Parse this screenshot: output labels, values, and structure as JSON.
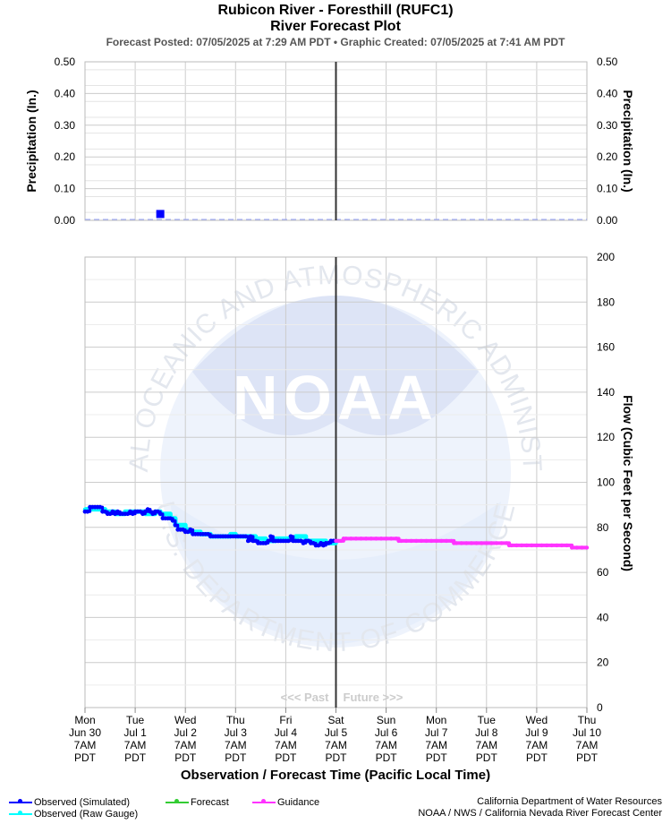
{
  "header": {
    "title": "Rubicon River - Foresthill (RUFC1)",
    "subtitle": "River Forecast Plot",
    "posted_line": "Forecast Posted: 07/05/2025 at 7:29 AM PDT  •  Graphic Created: 07/05/2025 at 7:41 AM PDT"
  },
  "watermark": {
    "logo_text": "NOAA",
    "ring_top": "NATIONAL OCEANIC AND ATMOSPHERIC ADMINISTRATION",
    "ring_bottom": "U.S. DEPARTMENT OF COMMERCE"
  },
  "colors": {
    "observed_simulated": "#0000ff",
    "observed_raw": "#00ffff",
    "forecast": "#33cc33",
    "guidance": "#ff33ff",
    "now_line": "#333333",
    "grid": "#cccccc",
    "watermark": "#e8efff"
  },
  "chart_data": [
    {
      "type": "scatter",
      "panel": "precipitation",
      "ylabel_left": "Precipitation (In.)",
      "ylabel_right": "Precipitation (In.)",
      "ylim": [
        0,
        0.5
      ],
      "yticks": [
        0.0,
        0.1,
        0.2,
        0.3,
        0.4,
        0.5
      ],
      "ytick_labels": [
        "0.00",
        "0.10",
        "0.20",
        "0.30",
        "0.40",
        "0.50"
      ],
      "xlim_days": [
        0,
        10
      ],
      "series": [
        {
          "name": "Observed Precipitation",
          "points": [
            {
              "x": 1.5,
              "y": 0.02
            }
          ]
        }
      ],
      "grid": true
    },
    {
      "type": "line",
      "panel": "flow",
      "ylabel": "Flow (Cubic Feet per Second)",
      "xlabel": "Observation / Forecast Time (Pacific Local Time)",
      "ylim": [
        0,
        200
      ],
      "yticks": [
        0,
        20,
        40,
        60,
        80,
        100,
        120,
        140,
        160,
        180,
        200
      ],
      "xlim_days": [
        0,
        10
      ],
      "x_tick_labels": [
        [
          "Mon",
          "Jun 30",
          "7AM",
          "PDT"
        ],
        [
          "Tue",
          "Jul 1",
          "7AM",
          "PDT"
        ],
        [
          "Wed",
          "Jul 2",
          "7AM",
          "PDT"
        ],
        [
          "Thu",
          "Jul 3",
          "7AM",
          "PDT"
        ],
        [
          "Fri",
          "Jul 4",
          "7AM",
          "PDT"
        ],
        [
          "Sat",
          "Jul 5",
          "7AM",
          "PDT"
        ],
        [
          "Sun",
          "Jul 6",
          "7AM",
          "PDT"
        ],
        [
          "Mon",
          "Jul 7",
          "7AM",
          "PDT"
        ],
        [
          "Tue",
          "Jul 8",
          "7AM",
          "PDT"
        ],
        [
          "Wed",
          "Jul 9",
          "7AM",
          "PDT"
        ],
        [
          "Thu",
          "Jul 10",
          "7AM",
          "PDT"
        ]
      ],
      "now_day": 5,
      "past_label": "<<< Past",
      "future_label": "Future >>>",
      "series": [
        {
          "name": "Observed (Raw Gauge)",
          "x": [
            0,
            0.1,
            0.2,
            0.4,
            0.6,
            0.8,
            1.0,
            1.2,
            1.4,
            1.5,
            1.6,
            1.7,
            1.8,
            2.0,
            2.1,
            2.3,
            2.5,
            2.7,
            2.9,
            3.0,
            3.2,
            3.4,
            3.6,
            3.8,
            4.0,
            4.2,
            4.4,
            4.6,
            4.8,
            5.0
          ],
          "y": [
            88,
            88,
            88,
            87,
            86,
            87,
            87,
            86,
            87,
            86,
            86,
            84,
            81,
            79,
            78,
            77,
            76,
            76,
            77,
            76,
            76,
            75,
            74,
            75,
            75,
            76,
            74,
            74,
            73,
            73
          ]
        },
        {
          "name": "Observed (Simulated)",
          "x": [
            0,
            0.05,
            0.1,
            0.15,
            0.2,
            0.25,
            0.3,
            0.35,
            0.4,
            0.45,
            0.5,
            0.55,
            0.6,
            0.65,
            0.7,
            0.75,
            0.8,
            0.85,
            0.9,
            0.95,
            1.0,
            1.05,
            1.1,
            1.15,
            1.2,
            1.25,
            1.3,
            1.35,
            1.4,
            1.45,
            1.5,
            1.55,
            1.6,
            1.65,
            1.7,
            1.75,
            1.8,
            1.85,
            1.9,
            1.95,
            2.0,
            2.05,
            2.1,
            2.15,
            2.2,
            2.25,
            2.3,
            2.35,
            2.4,
            2.45,
            2.5,
            2.55,
            2.6,
            2.65,
            2.7,
            2.75,
            2.8,
            2.85,
            2.9,
            2.95,
            3.0,
            3.05,
            3.1,
            3.15,
            3.2,
            3.25,
            3.3,
            3.35,
            3.4,
            3.45,
            3.5,
            3.55,
            3.6,
            3.65,
            3.7,
            3.75,
            3.8,
            3.85,
            3.9,
            3.95,
            4.0,
            4.05,
            4.1,
            4.15,
            4.2,
            4.25,
            4.3,
            4.35,
            4.4,
            4.45,
            4.5,
            4.55,
            4.6,
            4.65,
            4.7,
            4.75,
            4.8,
            4.85,
            4.9,
            4.95,
            5.0
          ],
          "y": [
            87,
            87,
            89,
            89,
            89,
            89,
            89,
            87,
            87,
            86,
            86,
            87,
            86,
            87,
            86,
            86,
            86,
            86,
            87,
            86,
            87,
            87,
            87,
            86,
            87,
            88,
            87,
            86,
            87,
            87,
            86,
            84,
            84,
            84,
            84,
            83,
            81,
            79,
            79,
            79,
            78,
            78,
            79,
            77,
            77,
            77,
            77,
            77,
            77,
            77,
            76,
            76,
            76,
            76,
            76,
            76,
            76,
            76,
            76,
            76,
            76,
            76,
            76,
            76,
            76,
            74,
            76,
            74,
            74,
            73,
            73,
            73,
            73,
            74,
            76,
            74,
            74,
            74,
            74,
            74,
            74,
            74,
            76,
            74,
            74,
            74,
            74,
            73,
            74,
            74,
            73,
            73,
            72,
            72,
            73,
            72,
            73,
            73,
            74,
            74,
            74
          ]
        },
        {
          "name": "Guidance",
          "x": [
            5.0,
            5.05,
            5.1,
            5.15,
            5.2,
            5.3,
            5.4,
            5.5,
            5.6,
            5.7,
            5.8,
            5.9,
            6.0,
            6.1,
            6.2,
            6.25,
            6.3,
            6.4,
            6.5,
            6.6,
            6.7,
            6.8,
            6.9,
            7.0,
            7.1,
            7.2,
            7.3,
            7.35,
            7.4,
            7.5,
            7.6,
            7.7,
            7.8,
            7.9,
            8.0,
            8.1,
            8.2,
            8.3,
            8.4,
            8.45,
            8.5,
            8.6,
            8.7,
            8.8,
            8.9,
            9.0,
            9.1,
            9.2,
            9.3,
            9.4,
            9.5,
            9.6,
            9.7,
            9.8,
            9.9,
            10.0
          ],
          "y": [
            74,
            74,
            74,
            75,
            75,
            75,
            75,
            75,
            75,
            75,
            75,
            75,
            75,
            75,
            75,
            74,
            74,
            74,
            74,
            74,
            74,
            74,
            74,
            74,
            74,
            74,
            74,
            73,
            73,
            73,
            73,
            73,
            73,
            73,
            73,
            73,
            73,
            73,
            73,
            72,
            72,
            72,
            72,
            72,
            72,
            72,
            72,
            72,
            72,
            72,
            72,
            72,
            71,
            71,
            71,
            71
          ]
        }
      ],
      "grid": true
    }
  ],
  "legend": {
    "items": [
      {
        "label": "Observed (Simulated)",
        "color": "#0000ff"
      },
      {
        "label": "Observed (Raw Gauge)",
        "color": "#00ffff"
      },
      {
        "label": "Forecast",
        "color": "#33cc33"
      },
      {
        "label": "Guidance",
        "color": "#ff33ff"
      }
    ]
  },
  "credits": {
    "line1": "California Department of Water Resources",
    "line2": "NOAA / NWS / California Nevada River Forecast Center"
  }
}
